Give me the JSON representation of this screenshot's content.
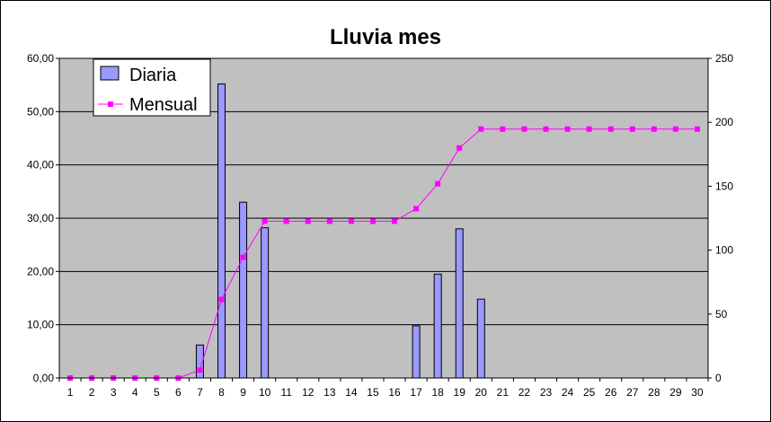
{
  "chart_data": {
    "type": "bar",
    "title": "Lluvia mes",
    "categories": [
      "1",
      "2",
      "3",
      "4",
      "5",
      "6",
      "7",
      "8",
      "9",
      "10",
      "11",
      "12",
      "13",
      "14",
      "15",
      "16",
      "17",
      "18",
      "19",
      "20",
      "21",
      "22",
      "23",
      "24",
      "25",
      "26",
      "27",
      "28",
      "29",
      "30"
    ],
    "series": [
      {
        "name": "Diaria",
        "type": "bar",
        "axis": "left",
        "color": "#9999ff",
        "values": [
          0,
          0,
          0,
          0,
          0,
          0,
          6.2,
          55.2,
          33.0,
          28.2,
          0,
          0,
          0,
          0,
          0,
          0,
          9.8,
          19.5,
          28.0,
          14.8,
          0,
          0,
          0,
          0,
          0,
          0,
          0,
          0,
          0,
          0
        ]
      },
      {
        "name": "Mensual",
        "type": "line",
        "axis": "right",
        "color": "#ff00ff",
        "values": [
          0,
          0,
          0,
          0,
          0,
          0,
          6.2,
          61.4,
          94.4,
          122.6,
          122.6,
          122.6,
          122.6,
          122.6,
          122.6,
          122.6,
          132.4,
          151.9,
          179.9,
          194.7,
          194.7,
          194.7,
          194.7,
          194.7,
          194.7,
          194.7,
          194.7,
          194.7,
          194.7,
          194.7
        ]
      }
    ],
    "y_left": {
      "min": 0,
      "max": 60,
      "ticks": [
        "0,00",
        "10,00",
        "20,00",
        "30,00",
        "40,00",
        "50,00",
        "60,00"
      ]
    },
    "y_right": {
      "min": 0,
      "max": 250,
      "ticks": [
        "0",
        "50",
        "100",
        "150",
        "200",
        "250"
      ]
    },
    "grid": true,
    "legend": "top-left",
    "plot_background": "#c0c0c0"
  }
}
